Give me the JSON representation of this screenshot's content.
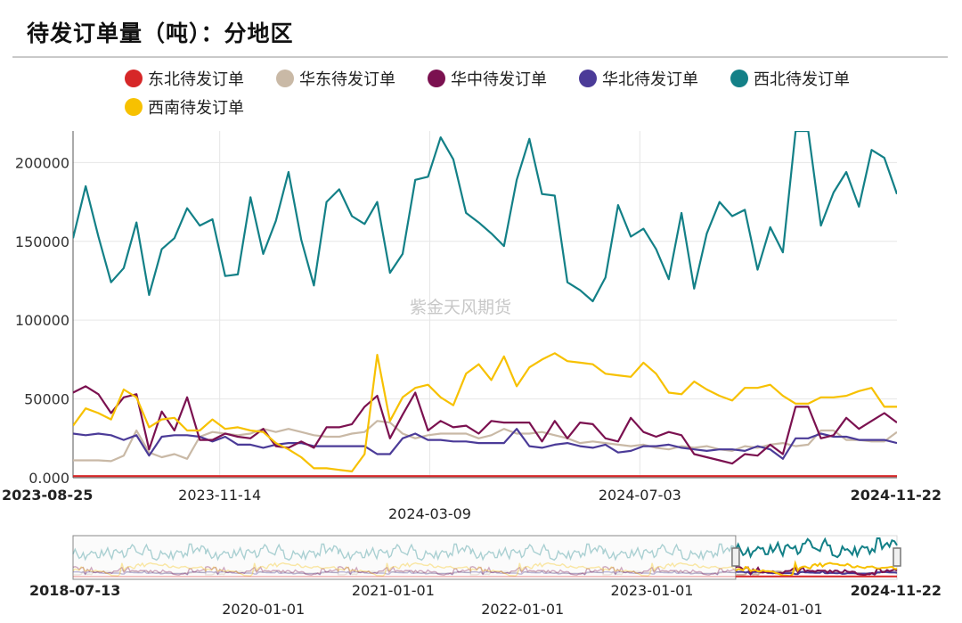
{
  "title": "待发订单量（吨）：分地区",
  "watermark": "紫金天风期货",
  "colors": {
    "东北待发订单": "#d62728",
    "华东待发订单": "#c9b9a6",
    "华中待发订单": "#7b1150",
    "华北待发订单": "#4b3b98",
    "西北待发订单": "#138087",
    "西南待发订单": "#f7c100"
  },
  "chart_data": {
    "type": "line",
    "ylim": [
      0,
      220000
    ],
    "yticks": [
      "0.000",
      "50000",
      "100000",
      "150000",
      "200000"
    ],
    "ytick_values": [
      0,
      50000,
      100000,
      150000,
      200000
    ],
    "x_start": "2023-08-25",
    "x_end": "2024-11-22",
    "x_ticks": [
      {
        "label": "2023-08-25",
        "date": "2023-08-25",
        "bold": true,
        "row": 1
      },
      {
        "label": "2023-11-14",
        "date": "2023-11-14",
        "bold": false,
        "row": 1
      },
      {
        "label": "2024-03-09",
        "date": "2024-03-09",
        "bold": false,
        "row": 2
      },
      {
        "label": "2024-07-03",
        "date": "2024-07-03",
        "bold": false,
        "row": 1
      },
      {
        "label": "2024-11-22",
        "date": "2024-11-22",
        "bold": true,
        "row": 1
      }
    ],
    "legend": [
      "东北待发订单",
      "华东待发订单",
      "华中待发订单",
      "华北待发订单",
      "西北待发订单",
      "西南待发订单"
    ],
    "series": [
      {
        "name": "东北待发订单",
        "values": [
          1000,
          1000,
          1000,
          1000,
          1000,
          1000,
          1000,
          1000,
          1000,
          1000,
          1000,
          1000,
          1000,
          1000,
          1000,
          1000,
          1000,
          1000,
          1000,
          1000,
          1000,
          1000,
          1000,
          1000,
          1000,
          1000,
          1000,
          1000,
          1000,
          1000,
          1000,
          1000,
          1000,
          1000,
          1000,
          1000,
          1000,
          1000,
          1000,
          1000,
          1000,
          1000,
          1000,
          1000,
          1000,
          1000,
          1000,
          1000,
          1000,
          1000,
          1000,
          1000,
          1000,
          1000,
          1000,
          1000,
          1000,
          1000,
          1000,
          1000,
          1000,
          1000,
          1000,
          1000,
          1000,
          1000
        ]
      },
      {
        "name": "华东待发订单",
        "values": [
          11000,
          11000,
          11000,
          10500,
          14000,
          30000,
          16000,
          13000,
          15000,
          12000,
          26000,
          29000,
          28000,
          27000,
          28000,
          31000,
          29000,
          31000,
          29000,
          27000,
          26000,
          26000,
          28000,
          29000,
          36000,
          35000,
          28000,
          25000,
          27000,
          28000,
          28000,
          28000,
          25000,
          27000,
          31000,
          28000,
          28000,
          29000,
          27000,
          25000,
          22000,
          23000,
          22000,
          21000,
          20000,
          21000,
          19000,
          18000,
          20000,
          19000,
          20000,
          18000,
          17000,
          20000,
          19000,
          21000,
          22000,
          20000,
          21000,
          30000,
          30000,
          24000,
          24000,
          23000,
          23000,
          29000
        ]
      },
      {
        "name": "华中待发订单",
        "values": [
          54000,
          58000,
          53000,
          41000,
          51000,
          53000,
          18000,
          42000,
          30000,
          51000,
          24000,
          24000,
          28000,
          26000,
          25000,
          31000,
          20000,
          19000,
          23000,
          19000,
          32000,
          32000,
          34000,
          45000,
          52000,
          25000,
          40000,
          54000,
          30000,
          36000,
          32000,
          33000,
          28000,
          36000,
          35000,
          35000,
          35000,
          23000,
          36000,
          25000,
          35000,
          34000,
          25000,
          23000,
          38000,
          29000,
          26000,
          29000,
          27000,
          15000,
          13000,
          11000,
          9000,
          15000,
          14000,
          21000,
          15000,
          45000,
          45000,
          25000,
          27000,
          38000,
          31000,
          36000,
          41000,
          35000
        ]
      },
      {
        "name": "华北待发订单",
        "values": [
          28000,
          27000,
          28000,
          27000,
          24000,
          27000,
          14000,
          26000,
          27000,
          27000,
          26000,
          23000,
          26000,
          21000,
          21000,
          19000,
          21000,
          22000,
          22000,
          20000,
          20000,
          20000,
          20000,
          20000,
          15000,
          15000,
          25000,
          28000,
          24000,
          24000,
          23000,
          23000,
          22000,
          22000,
          22000,
          31000,
          20000,
          19000,
          21000,
          22000,
          20000,
          19000,
          21000,
          16000,
          17000,
          20000,
          20000,
          21000,
          19000,
          18000,
          17000,
          18000,
          18000,
          17000,
          20000,
          18000,
          12000,
          25000,
          25000,
          28000,
          26000,
          26000,
          24000,
          24000,
          24000,
          22000
        ]
      },
      {
        "name": "西北待发订单",
        "values": [
          152000,
          185000,
          153000,
          124000,
          133000,
          162000,
          116000,
          145000,
          152000,
          171000,
          160000,
          164000,
          128000,
          129000,
          178000,
          142000,
          163000,
          194000,
          151000,
          122000,
          175000,
          183000,
          166000,
          161000,
          175000,
          130000,
          142000,
          189000,
          191000,
          216000,
          202000,
          168000,
          162000,
          155000,
          147000,
          189000,
          215000,
          180000,
          179000,
          124000,
          119000,
          112000,
          127000,
          173000,
          153000,
          158000,
          145000,
          126000,
          168000,
          120000,
          155000,
          175000,
          166000,
          170000,
          132000,
          159000,
          143000,
          220000,
          220000,
          160000,
          181000,
          194000,
          172000,
          208000,
          203000,
          180000
        ]
      },
      {
        "name": "西南待发订单",
        "values": [
          33000,
          44000,
          41000,
          37000,
          56000,
          51000,
          32000,
          37000,
          38000,
          30000,
          30000,
          37000,
          31000,
          32000,
          30000,
          29000,
          22000,
          18000,
          13000,
          6000,
          6000,
          5000,
          4000,
          15000,
          78000,
          36000,
          51000,
          57000,
          59000,
          51000,
          46000,
          66000,
          72000,
          62000,
          77000,
          58000,
          70000,
          75000,
          79000,
          74000,
          73000,
          72000,
          66000,
          65000,
          64000,
          73000,
          66000,
          54000,
          53000,
          61000,
          56000,
          52000,
          49000,
          57000,
          57000,
          59000,
          52000,
          47000,
          47000,
          51000,
          51000,
          52000,
          55000,
          57000,
          45000,
          45000
        ]
      }
    ]
  },
  "navigator": {
    "labels_row1": [
      {
        "label": "2018-07-13",
        "date": "2018-07-13",
        "bold": true
      },
      {
        "label": "2021-01-01",
        "date": "2021-01-01",
        "bold": false
      },
      {
        "label": "2023-01-01",
        "date": "2023-01-01",
        "bold": false
      },
      {
        "label": "2024-11-22",
        "date": "2024-11-22",
        "bold": true
      }
    ],
    "labels_row2": [
      {
        "label": "2020-01-01",
        "date": "2020-01-01"
      },
      {
        "label": "2022-01-01",
        "date": "2022-01-01"
      },
      {
        "label": "2024-01-01",
        "date": "2024-01-01"
      }
    ],
    "range_start": "2018-07-13",
    "range_end": "2024-11-22",
    "selected_start": "2023-08-25",
    "selected_end": "2024-11-22"
  }
}
